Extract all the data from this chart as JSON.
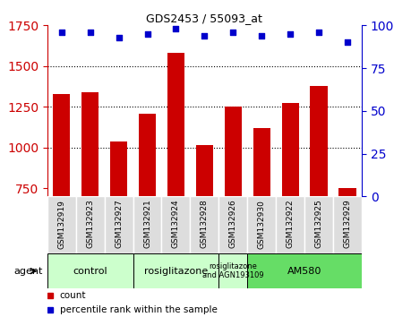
{
  "title": "GDS2453 / 55093_at",
  "samples": [
    "GSM132919",
    "GSM132923",
    "GSM132927",
    "GSM132921",
    "GSM132924",
    "GSM132928",
    "GSM132926",
    "GSM132930",
    "GSM132922",
    "GSM132925",
    "GSM132929"
  ],
  "counts": [
    1330,
    1340,
    1040,
    1210,
    1580,
    1015,
    1250,
    1120,
    1275,
    1380,
    750
  ],
  "percentile_ranks": [
    96,
    96,
    93,
    95,
    98,
    94,
    96,
    94,
    95,
    96,
    90
  ],
  "ylim_left": [
    700,
    1750
  ],
  "ylim_right": [
    0,
    100
  ],
  "yticks_left": [
    750,
    1000,
    1250,
    1500,
    1750
  ],
  "yticks_right": [
    0,
    25,
    50,
    75,
    100
  ],
  "bar_color": "#cc0000",
  "dot_color": "#0000cc",
  "groups": [
    {
      "label": "control",
      "start": 0,
      "end": 3,
      "color": "#ccffcc"
    },
    {
      "label": "rosiglitazone",
      "start": 3,
      "end": 6,
      "color": "#ccffcc"
    },
    {
      "label": "rosiglitazone\nand AGN193109",
      "start": 6,
      "end": 7,
      "color": "#ccffcc"
    },
    {
      "label": "AM580",
      "start": 7,
      "end": 11,
      "color": "#66dd66"
    }
  ],
  "legend_bar_label": "count",
  "legend_dot_label": "percentile rank within the sample",
  "agent_label": "agent",
  "background_color": "#ffffff",
  "plot_bg_color": "#ffffff",
  "tick_color_left": "#cc0000",
  "tick_color_right": "#0000cc",
  "sample_box_color": "#dddddd",
  "grid_color": "#000000"
}
